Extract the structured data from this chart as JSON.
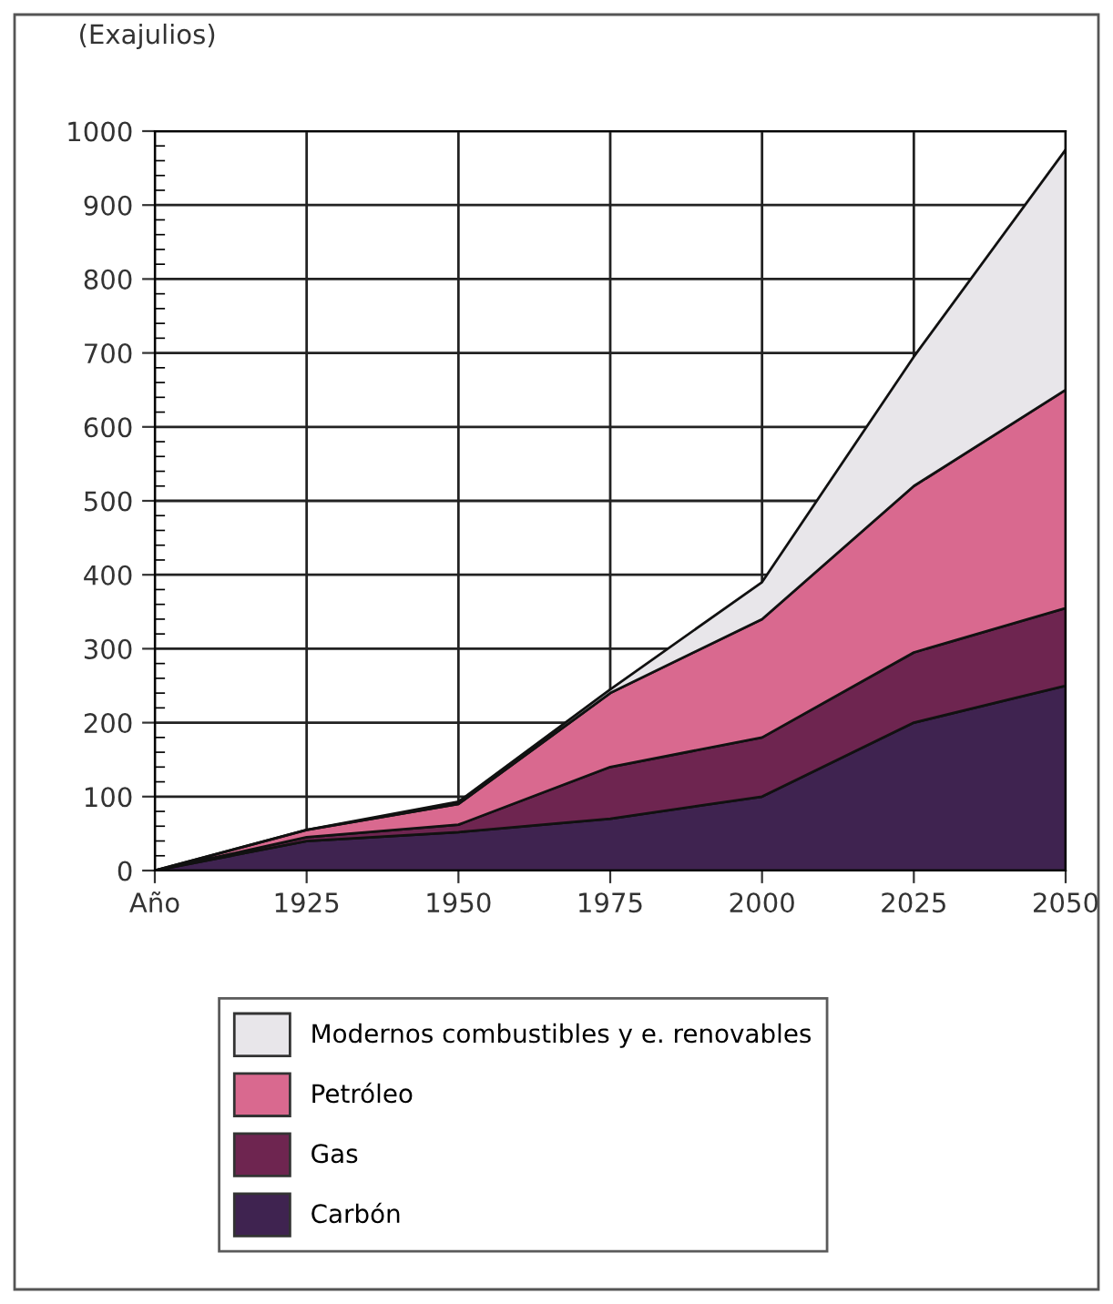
{
  "chart_data": {
    "type": "area",
    "stacked": true,
    "ylabel": "(Exajulios)",
    "categories": [
      "Año",
      "1925",
      "1950",
      "1975",
      "2000",
      "2025",
      "2050"
    ],
    "series": [
      {
        "name": "Carbón",
        "color": "#3f2350",
        "values": [
          0,
          40,
          52,
          70,
          100,
          200,
          250
        ]
      },
      {
        "name": "Gas",
        "color": "#6e2550",
        "values": [
          0,
          5,
          10,
          70,
          80,
          95,
          105
        ]
      },
      {
        "name": "Petróleo",
        "color": "#d9698f",
        "values": [
          0,
          10,
          28,
          100,
          160,
          225,
          295
        ]
      },
      {
        "name": "Modernos combustibles y e. renovables",
        "color": "#e8e6ea",
        "values": [
          0,
          0,
          3,
          5,
          50,
          175,
          325
        ]
      }
    ],
    "ylim": [
      0,
      1000
    ],
    "yticks": [
      0,
      100,
      200,
      300,
      400,
      500,
      600,
      700,
      800,
      900,
      1000
    ],
    "grid": true,
    "legend": "bottom"
  }
}
